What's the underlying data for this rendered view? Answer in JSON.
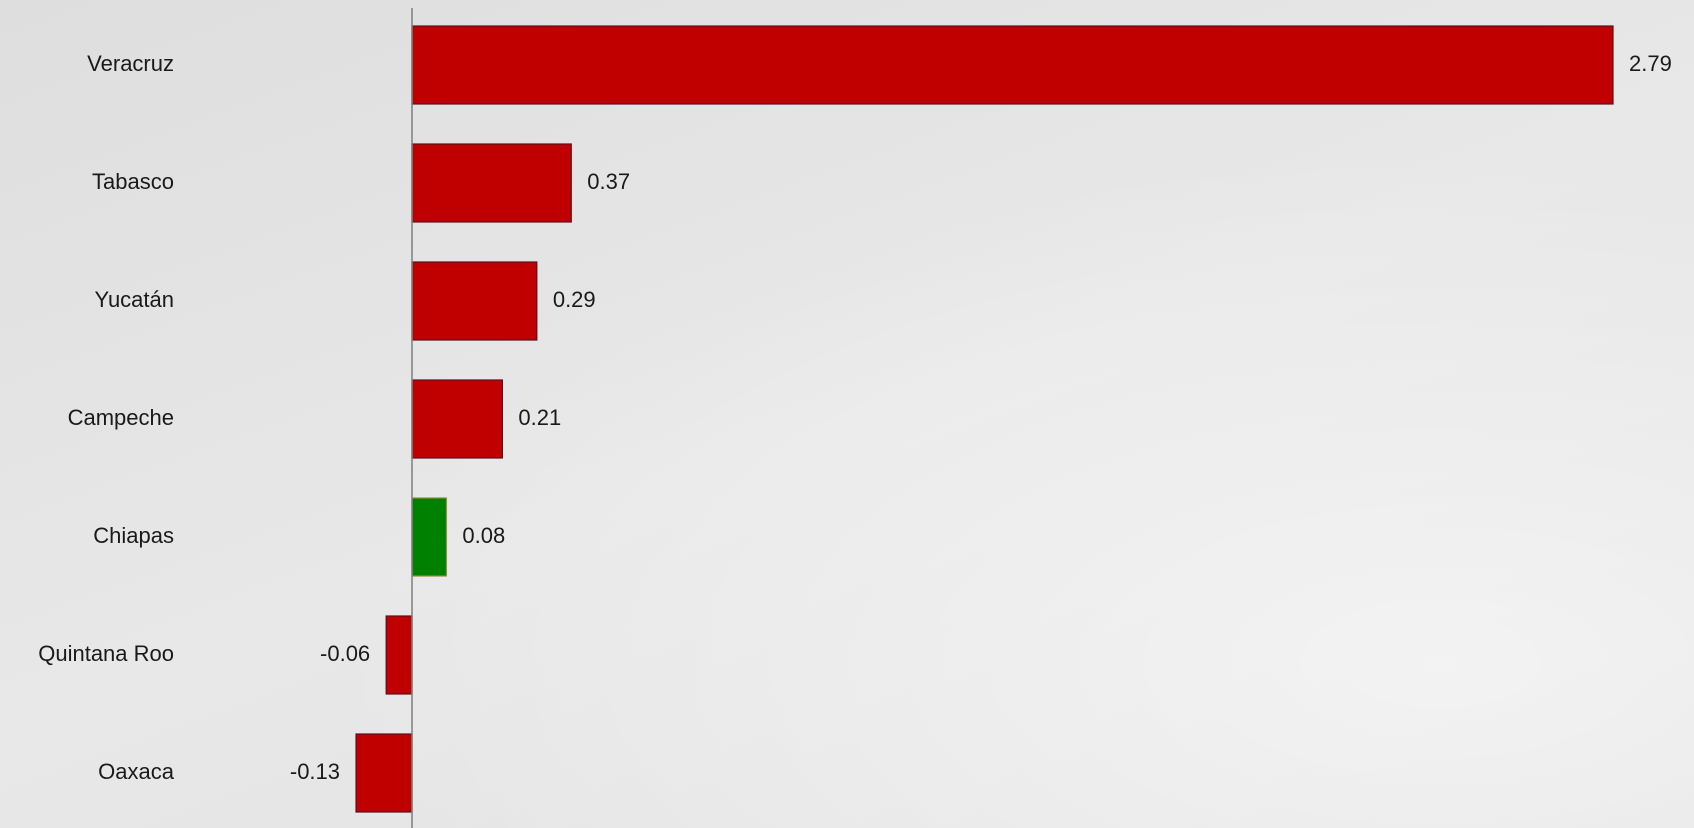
{
  "chart_data": {
    "type": "bar",
    "orientation": "horizontal",
    "title": "",
    "xlabel": "",
    "ylabel": "",
    "categories": [
      "Veracruz",
      "Tabasco",
      "Yucatán",
      "Campeche",
      "Chiapas",
      "Quintana Roo",
      "Oaxaca"
    ],
    "values": [
      2.79,
      0.37,
      0.29,
      0.21,
      0.08,
      -0.06,
      -0.13
    ],
    "value_labels": [
      "2.79",
      "0.37",
      "0.29",
      "0.21",
      "0.08",
      "-0.06",
      "-0.13"
    ],
    "bar_colors": [
      "#c00000",
      "#c00000",
      "#c00000",
      "#c00000",
      "#008000",
      "#c00000",
      "#c00000"
    ],
    "highlight_color": "#008000",
    "base_color": "#c00000",
    "xlim": [
      -0.13,
      2.79
    ],
    "grid": false,
    "legend": "none"
  }
}
